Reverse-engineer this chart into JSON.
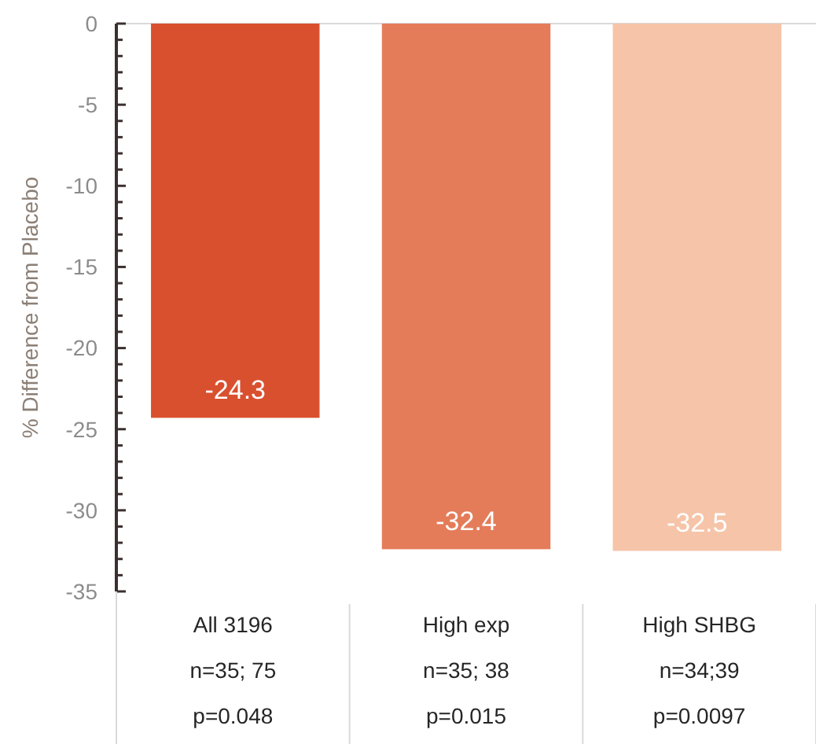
{
  "chart_data": {
    "type": "bar",
    "ylabel": "% Difference from Placebo",
    "categories": [
      "All 3196\nn=35; 75\np=0.048",
      "High exp\nn=35; 38\np=0.015",
      "High SHBG\nn=34;39\np=0.0097"
    ],
    "values": [
      -24.3,
      -32.4,
      -32.5
    ],
    "colors": [
      "#d9502f",
      "#e47c5a",
      "#f6c4a8"
    ],
    "data_labels": true,
    "ylim": [
      -35,
      0
    ],
    "yticks": [
      0,
      {
        "value": -1,
        "label": null
      },
      {
        "value": -2,
        "label": null
      },
      {
        "value": -3,
        "label": null
      },
      {
        "value": -4,
        "label": null
      },
      -5,
      {
        "value": -6,
        "label": null
      },
      {
        "value": -7,
        "label": null
      },
      {
        "value": -8,
        "label": null
      },
      {
        "value": -9,
        "label": null
      },
      -10,
      {
        "value": -11,
        "label": null
      },
      {
        "value": -12,
        "label": null
      },
      {
        "value": -13,
        "label": null
      },
      {
        "value": -14,
        "label": null
      },
      -15,
      {
        "value": -16,
        "label": null
      },
      {
        "value": -17,
        "label": null
      },
      {
        "value": -18,
        "label": null
      },
      {
        "value": -19,
        "label": null
      },
      -20,
      {
        "value": -21,
        "label": null
      },
      {
        "value": -22,
        "label": null
      },
      {
        "value": -23,
        "label": null
      },
      {
        "value": -24,
        "label": null
      },
      -25,
      {
        "value": -26,
        "label": null
      },
      {
        "value": -27,
        "label": null
      },
      {
        "value": -28,
        "label": null
      },
      {
        "value": -29,
        "label": null
      },
      -30,
      {
        "value": -31,
        "label": null
      },
      {
        "value": -32,
        "label": null
      },
      {
        "value": -33,
        "label": null
      },
      {
        "value": -34,
        "label": null
      },
      -35
    ],
    "grid": false
  }
}
